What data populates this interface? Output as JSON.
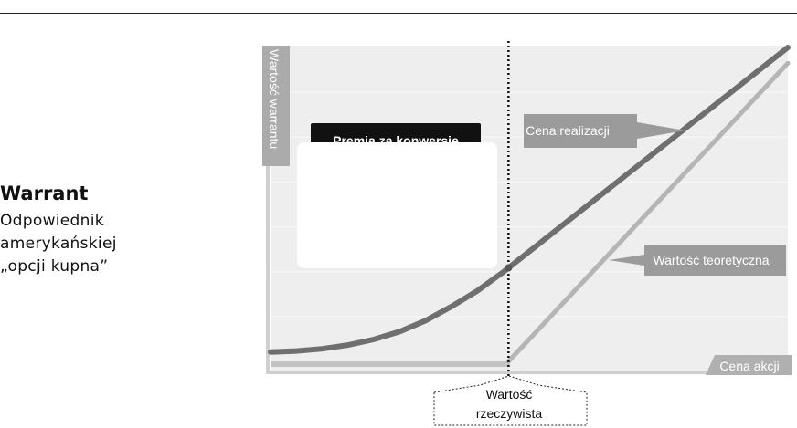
{
  "sidebar": {
    "title": "Warrant",
    "lines": [
      "Odpowiednik",
      "amerykańskiej",
      "„opcji kupna”"
    ]
  },
  "colors": {
    "plot_background": "#eeeeee",
    "warrant_curve": "#6f6f6f",
    "theoretical_line": "#b5b5b5",
    "label_box": "#9e9e9e",
    "dark_label": "#111111"
  },
  "chart_data": {
    "type": "line",
    "title": "",
    "ylabel": "Wartość warrantu",
    "xlabel": "Cena akcji",
    "x_ticks": [],
    "y_ticks": [],
    "grid": true,
    "series": [
      {
        "name": "Cena realizacji",
        "x": [
          0,
          5,
          10,
          15,
          20,
          25,
          30,
          35,
          40,
          45,
          50,
          60,
          70,
          80,
          90,
          100
        ],
        "y": [
          3,
          3.3,
          4,
          5.2,
          7,
          9.5,
          13,
          17.5,
          22.5,
          28.5,
          35,
          48,
          61,
          74,
          87,
          100
        ]
      },
      {
        "name": "Wartość teoretyczna",
        "x": [
          0,
          46,
          100
        ],
        "y": [
          0,
          0,
          95
        ]
      }
    ],
    "annotations": {
      "premium_label": "Premia za konwersję",
      "intrinsic_value_label": [
        "Wartość",
        "rzeczywista"
      ],
      "vertical_marker_x": 46
    }
  }
}
